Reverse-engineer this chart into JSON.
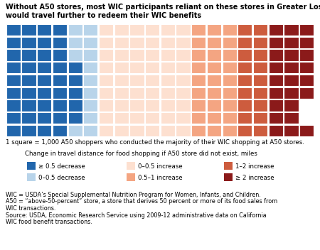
{
  "title_line1": "Without A50 stores, most WIC participants reliant on these stores in Greater Los Angeles",
  "title_line2": "would travel further to redeem their WIC benefits",
  "subtitle": "1 square = 1,000 A50 shoppers who conducted the majority of their WIC shopping at A50 stores.",
  "legend_title": "Change in travel distance for food shopping if A50 store did not exist, miles",
  "legend_colors": [
    "#2166ac",
    "#b8d4ea",
    "#fde0d0",
    "#f4a582",
    "#cd5c3e",
    "#8b1a1a"
  ],
  "legend_labels": [
    "≥ 0.5 decrease",
    "0–0.5 decrease",
    "0–0.5 increase",
    "0.5–1 increase",
    "1–2 increase",
    "≥ 2 increase"
  ],
  "footnote_line1": "WIC = USDA’s Special Supplemental Nutrition Program for Women, Infants, and Children.",
  "footnote_line2": "A50 = “above-50-percent” store, a store that derives 50 percent or more of its food sales from",
  "footnote_line3": "WIC transactions.",
  "footnote_line4": "Source: USDA, Economic Research Service using 2009-12 administrative data on California",
  "footnote_line5": "WIC food benefit transactions.",
  "ncols": 20,
  "nrows": 9,
  "colors": {
    "dark_blue": "#2166ac",
    "light_blue": "#b8d4ea",
    "very_light_peach": "#fde0d0",
    "light_orange": "#f4a582",
    "medium_red": "#cd5c3e",
    "dark_red": "#8b1a1a"
  },
  "grid": [
    [
      1,
      1,
      1,
      1,
      2,
      2,
      3,
      3,
      3,
      3,
      3,
      3,
      4,
      4,
      4,
      5,
      5,
      6,
      6,
      6
    ],
    [
      1,
      1,
      1,
      1,
      2,
      2,
      3,
      3,
      3,
      3,
      3,
      3,
      4,
      4,
      4,
      5,
      5,
      6,
      6,
      6
    ],
    [
      1,
      1,
      1,
      1,
      2,
      2,
      3,
      3,
      3,
      3,
      3,
      3,
      4,
      4,
      4,
      5,
      5,
      6,
      6,
      6
    ],
    [
      1,
      1,
      1,
      1,
      1,
      2,
      3,
      3,
      3,
      3,
      3,
      3,
      4,
      4,
      4,
      5,
      5,
      6,
      6,
      6
    ],
    [
      1,
      1,
      1,
      1,
      1,
      2,
      3,
      3,
      3,
      3,
      3,
      3,
      4,
      4,
      4,
      5,
      5,
      6,
      6,
      6
    ],
    [
      1,
      1,
      1,
      1,
      1,
      2,
      3,
      3,
      3,
      3,
      3,
      3,
      4,
      4,
      4,
      5,
      5,
      6,
      6,
      6
    ],
    [
      1,
      1,
      1,
      1,
      1,
      2,
      3,
      3,
      3,
      3,
      3,
      3,
      4,
      4,
      4,
      5,
      5,
      6,
      6,
      0
    ],
    [
      1,
      1,
      1,
      1,
      1,
      2,
      3,
      3,
      3,
      3,
      3,
      3,
      4,
      4,
      4,
      5,
      5,
      6,
      6,
      0
    ],
    [
      1,
      1,
      1,
      1,
      2,
      2,
      3,
      3,
      3,
      3,
      3,
      3,
      4,
      4,
      4,
      5,
      5,
      6,
      6,
      6
    ]
  ],
  "background_color": "#ffffff"
}
